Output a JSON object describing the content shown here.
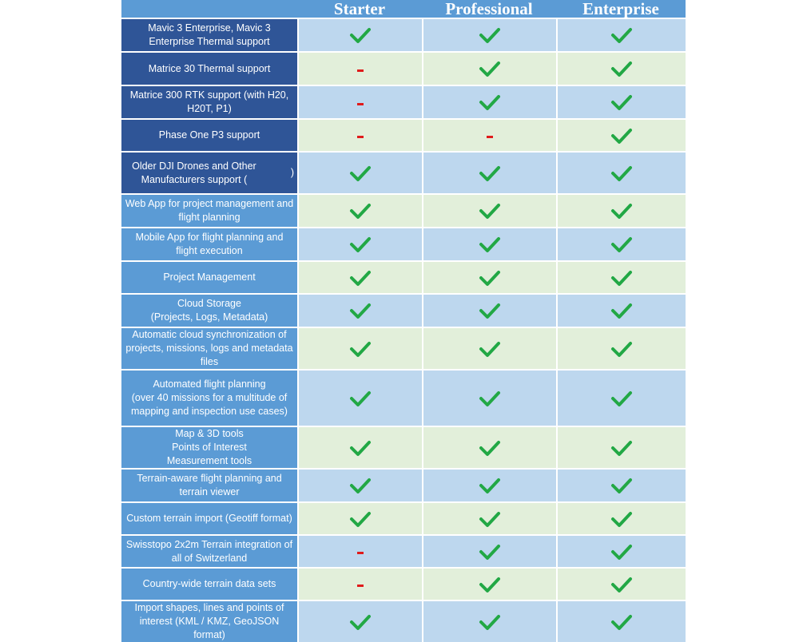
{
  "columns": [
    "Starter",
    "Professional",
    "Enterprise"
  ],
  "values_legend": {
    "yes": "check-icon",
    "no": "dash-icon"
  },
  "colors": {
    "header": "#5b9bd5",
    "feature_dark": "#2f5597",
    "feature_light": "#5b9bd5",
    "cell_blue": "#bdd7ee",
    "cell_green": "#e2efda",
    "check": "#22a845",
    "dash": "#e01b1b"
  },
  "rows": [
    {
      "feature": "Mavic 3 Enterprise, Mavic 3 Enterprise Thermal support",
      "values": [
        "yes",
        "yes",
        "yes"
      ]
    },
    {
      "feature": "Matrice 30 Thermal support",
      "values": [
        "no",
        "yes",
        "yes"
      ]
    },
    {
      "feature": "Matrice 300 RTK support (with H20, H20T, P1)",
      "values": [
        "no",
        "yes",
        "yes"
      ]
    },
    {
      "feature": "Phase One P3 support",
      "values": [
        "no",
        "no",
        "yes"
      ]
    },
    {
      "feature": "Older DJI Drones and Other Manufacturers support (",
      "link_text": "",
      "feature_suffix": ")",
      "values": [
        "yes",
        "yes",
        "yes"
      ]
    },
    {
      "feature": "Web App for project management and flight planning",
      "values": [
        "yes",
        "yes",
        "yes"
      ]
    },
    {
      "feature": "Mobile App for flight planning and flight execution",
      "values": [
        "yes",
        "yes",
        "yes"
      ]
    },
    {
      "feature": "Project Management",
      "values": [
        "yes",
        "yes",
        "yes"
      ]
    },
    {
      "feature": "Cloud Storage\n(Projects, Logs, Metadata)",
      "values": [
        "yes",
        "yes",
        "yes"
      ]
    },
    {
      "feature": "Automatic cloud synchronization of projects, missions, logs and metadata files",
      "values": [
        "yes",
        "yes",
        "yes"
      ]
    },
    {
      "feature": "Automated flight planning\n(over 40 missions for a multitude of mapping and inspection use cases)",
      "values": [
        "yes",
        "yes",
        "yes"
      ]
    },
    {
      "feature": "Map & 3D tools\nPoints of Interest\nMeasurement tools",
      "values": [
        "yes",
        "yes",
        "yes"
      ]
    },
    {
      "feature": "Terrain-aware flight planning and terrain viewer",
      "values": [
        "yes",
        "yes",
        "yes"
      ]
    },
    {
      "feature": "Custom terrain import (Geotiff format)",
      "values": [
        "yes",
        "yes",
        "yes"
      ]
    },
    {
      "feature": "Swisstopo 2x2m Terrain integration of all of Switzerland",
      "values": [
        "no",
        "yes",
        "yes"
      ]
    },
    {
      "feature": "Country-wide terrain data sets",
      "values": [
        "no",
        "yes",
        "yes"
      ]
    },
    {
      "feature": "Import shapes, lines and points of interest (KML / KMZ, GeoJSON format)",
      "values": [
        "yes",
        "yes",
        "yes"
      ]
    }
  ]
}
